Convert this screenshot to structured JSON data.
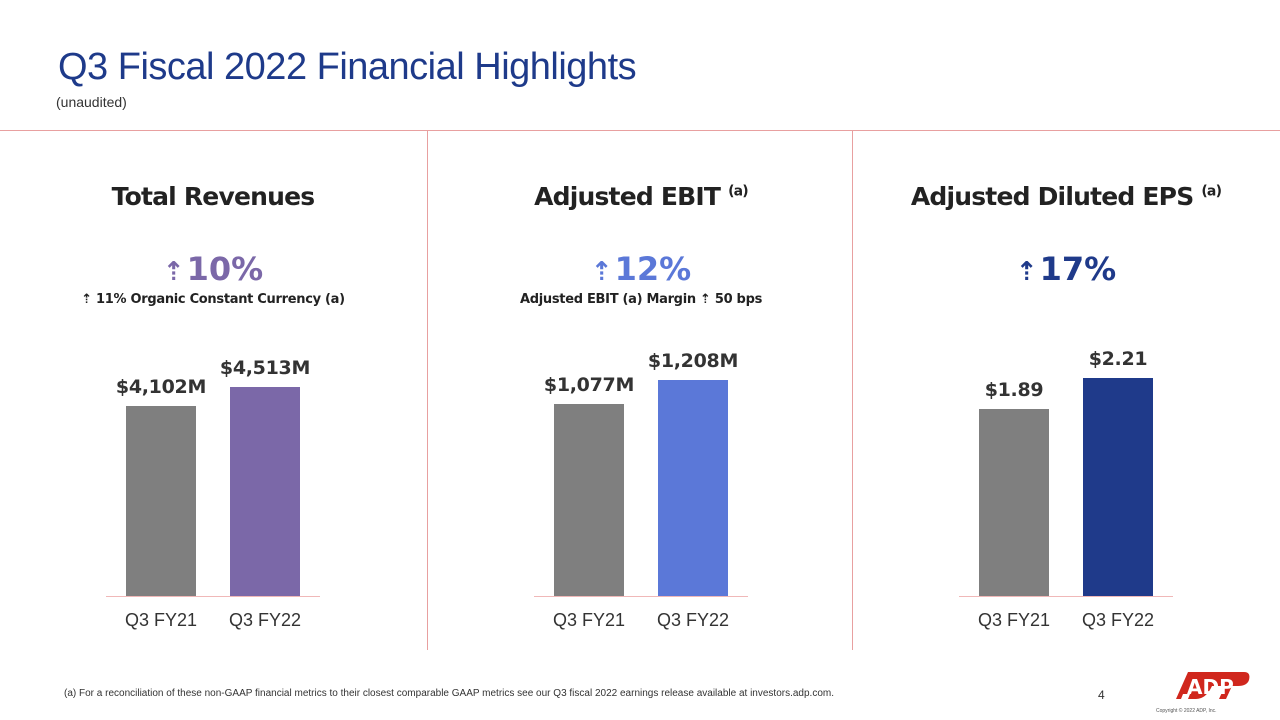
{
  "header": {
    "title": "Q3 Fiscal 2022 Financial Highlights",
    "subtitle": "(unaudited)"
  },
  "colors": {
    "title": "#1e3a8a",
    "divider": "#e8a0a0",
    "fy21_bar": "#7f7f7f",
    "revenues_fy22_bar": "#7b68a8",
    "ebit_fy22_bar": "#5b78d8",
    "eps_fy22_bar": "#1f3a8a",
    "logo": "#d0271d"
  },
  "panels": [
    {
      "title": "Total Revenues",
      "superscript": "",
      "growth_arrow": "⇡",
      "growth": "10%",
      "growth_color": "#7b68a8",
      "subnote": "⇡ 11% Organic Constant Currency (a)"
    },
    {
      "title": "Adjusted EBIT",
      "superscript": "(a)",
      "growth_arrow": "⇡",
      "growth": "12%",
      "growth_color": "#5b78d8",
      "subnote": "Adjusted EBIT (a) Margin ⇡ 50 bps"
    },
    {
      "title": "Adjusted Diluted EPS",
      "superscript": "(a)",
      "growth_arrow": "⇡",
      "growth": "17%",
      "growth_color": "#1f3a8a",
      "subnote": ""
    }
  ],
  "chart_data": [
    {
      "type": "bar",
      "title": "Total Revenues",
      "categories": [
        "Q3 FY21",
        "Q3 FY22"
      ],
      "values": [
        4102,
        4513
      ],
      "data_labels": [
        "$4,102M",
        "$4,513M"
      ],
      "unit": "$M",
      "bar_colors": [
        "#7f7f7f",
        "#7b68a8"
      ],
      "ylim": [
        0,
        5000
      ]
    },
    {
      "type": "bar",
      "title": "Adjusted EBIT",
      "categories": [
        "Q3 FY21",
        "Q3 FY22"
      ],
      "values": [
        1077,
        1208
      ],
      "data_labels": [
        "$1,077M",
        "$1,208M"
      ],
      "unit": "$M",
      "bar_colors": [
        "#7f7f7f",
        "#5b78d8"
      ],
      "ylim": [
        0,
        1300
      ]
    },
    {
      "type": "bar",
      "title": "Adjusted Diluted EPS",
      "categories": [
        "Q3 FY21",
        "Q3 FY22"
      ],
      "values": [
        1.89,
        2.21
      ],
      "data_labels": [
        "$1.89",
        "$2.21"
      ],
      "unit": "$",
      "bar_colors": [
        "#7f7f7f",
        "#1f3a8a"
      ],
      "ylim": [
        0,
        2.35
      ]
    }
  ],
  "footer": {
    "footnote": "(a)    For a reconciliation of these non-GAAP financial metrics to their closest comparable GAAP metrics see our Q3 fiscal 2022 earnings release available at investors.adp.com.",
    "page_number": "4",
    "logo_text": "ADP",
    "copyright": "Copyright © 2022 ADP, Inc."
  }
}
